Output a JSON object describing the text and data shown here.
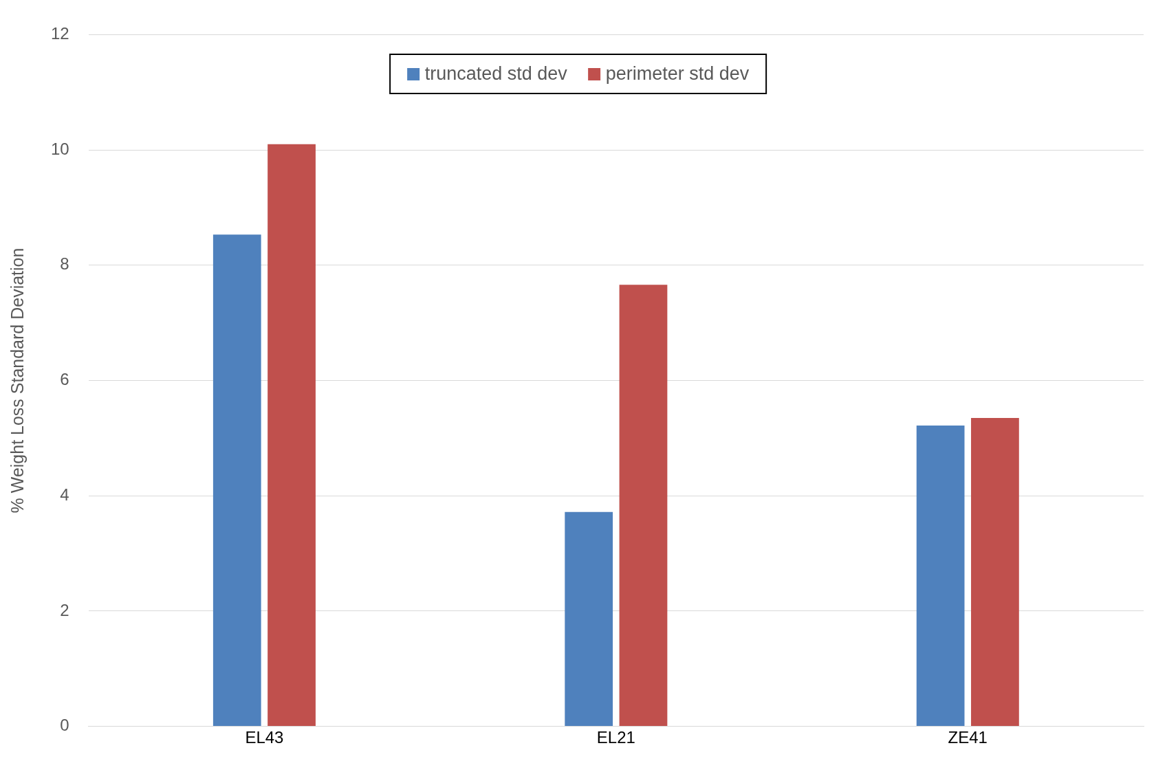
{
  "chart_data": {
    "type": "bar",
    "ylabel": "% Weight Loss Standard Deviation",
    "categories": [
      "EL43",
      "EL21",
      "ZE41"
    ],
    "series": [
      {
        "name": "truncated std dev",
        "color": "#4f81bd",
        "values": [
          8.53,
          3.72,
          5.22
        ]
      },
      {
        "name": "perimeter std dev",
        "color": "#c0504d",
        "values": [
          10.1,
          7.66,
          5.35
        ]
      }
    ],
    "ylim": [
      0,
      12
    ],
    "yticks": [
      0,
      2,
      4,
      6,
      8,
      10,
      12
    ],
    "grid": "y",
    "legend": "top"
  }
}
